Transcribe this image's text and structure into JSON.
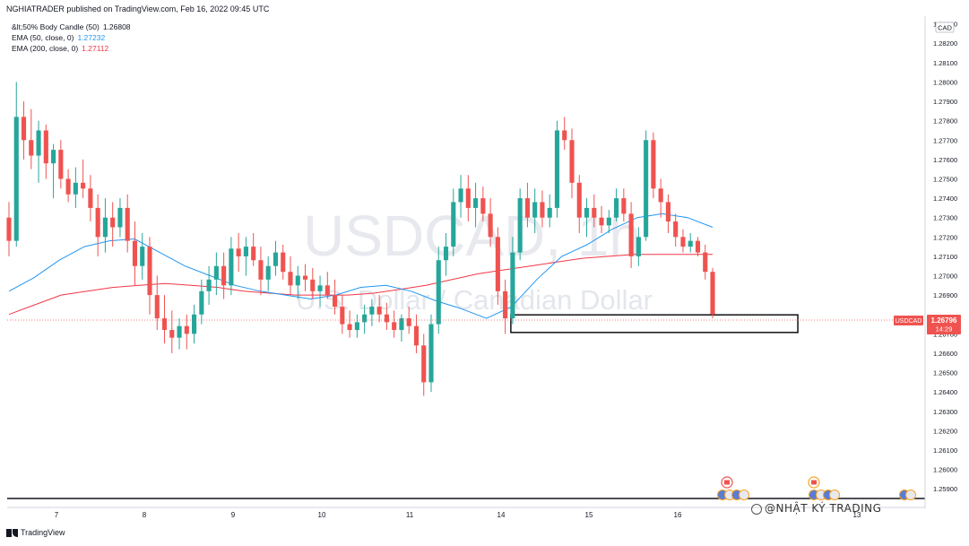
{
  "header": {
    "publisher": "NGHIATRADER published on TradingView.com, Feb 16, 2022 09:45 UTC"
  },
  "legend": {
    "indicator_1": {
      "label": "&lt;50% Body Candle (50)",
      "value": "1.26808",
      "color": "#131722"
    },
    "indicator_2": {
      "label": "EMA (50, close, 0)",
      "value": "1.27232",
      "color": "#2196f3"
    },
    "indicator_3": {
      "label": "EMA (200, close, 0)",
      "value": "1.27112",
      "color": "#f23645"
    }
  },
  "watermark": {
    "symbol": "USDCAD, 1h",
    "description": "U.S. Dollar / Canadian Dollar",
    "overlay": "@NHẬT KÝ TRADING"
  },
  "footer": {
    "brand": "TradingView"
  },
  "chart_data": {
    "type": "candlestick",
    "symbol": "USDCAD",
    "currency": "CAD",
    "price_label": "1.26796",
    "countdown": "14:29",
    "y_ticks": [
      "1.28300",
      "1.28200",
      "1.28100",
      "1.28000",
      "1.27900",
      "1.27800",
      "1.27700",
      "1.27600",
      "1.27500",
      "1.27400",
      "1.27300",
      "1.27200",
      "1.27100",
      "1.27000",
      "1.26900",
      "1.26700",
      "1.26600",
      "1.26500",
      "1.26400",
      "1.26300",
      "1.26200",
      "1.26100",
      "1.26000",
      "1.25900"
    ],
    "ylim": [
      1.2585,
      1.2834
    ],
    "x_ticks": [
      "7",
      "8",
      "9",
      "10",
      "11",
      "14",
      "15",
      "16",
      "13"
    ],
    "colors": {
      "up": "#26a69a",
      "down": "#ef5350",
      "ema50": "#2196f3",
      "ema200": "#f23645",
      "box": "#000000"
    },
    "candles": [
      [
        1.273,
        1.2738,
        1.271,
        1.2718
      ],
      [
        1.2718,
        1.28,
        1.2715,
        1.2782
      ],
      [
        1.2782,
        1.279,
        1.276,
        1.277
      ],
      [
        1.277,
        1.2786,
        1.2755,
        1.2762
      ],
      [
        1.2762,
        1.278,
        1.2748,
        1.2775
      ],
      [
        1.2775,
        1.2778,
        1.275,
        1.2758
      ],
      [
        1.2758,
        1.2768,
        1.274,
        1.2765
      ],
      [
        1.2765,
        1.277,
        1.2745,
        1.275
      ],
      [
        1.275,
        1.2755,
        1.2738,
        1.2742
      ],
      [
        1.2742,
        1.2756,
        1.2735,
        1.2748
      ],
      [
        1.2748,
        1.276,
        1.274,
        1.2745
      ],
      [
        1.2745,
        1.2752,
        1.2728,
        1.2735
      ],
      [
        1.2735,
        1.2742,
        1.271,
        1.272
      ],
      [
        1.272,
        1.274,
        1.2712,
        1.273
      ],
      [
        1.273,
        1.2738,
        1.2715,
        1.2725
      ],
      [
        1.2725,
        1.274,
        1.272,
        1.2735
      ],
      [
        1.2735,
        1.2742,
        1.2712,
        1.2718
      ],
      [
        1.2718,
        1.2728,
        1.2695,
        1.2705
      ],
      [
        1.2705,
        1.2722,
        1.2698,
        1.2715
      ],
      [
        1.2715,
        1.272,
        1.268,
        1.269
      ],
      [
        1.269,
        1.27,
        1.2672,
        1.2678
      ],
      [
        1.2678,
        1.269,
        1.2665,
        1.2672
      ],
      [
        1.2672,
        1.2682,
        1.266,
        1.2668
      ],
      [
        1.2668,
        1.2678,
        1.2662,
        1.2674
      ],
      [
        1.2674,
        1.268,
        1.2662,
        1.267
      ],
      [
        1.267,
        1.2685,
        1.2665,
        1.268
      ],
      [
        1.268,
        1.2698,
        1.2675,
        1.2692
      ],
      [
        1.2692,
        1.2705,
        1.2685,
        1.2698
      ],
      [
        1.2698,
        1.2712,
        1.269,
        1.2705
      ],
      [
        1.2705,
        1.2712,
        1.2688,
        1.2695
      ],
      [
        1.2695,
        1.272,
        1.269,
        1.2714
      ],
      [
        1.2714,
        1.2722,
        1.2702,
        1.271
      ],
      [
        1.271,
        1.272,
        1.27,
        1.2715
      ],
      [
        1.2715,
        1.2722,
        1.2705,
        1.2708
      ],
      [
        1.2708,
        1.2715,
        1.269,
        1.2698
      ],
      [
        1.2698,
        1.271,
        1.2692,
        1.2705
      ],
      [
        1.2705,
        1.2718,
        1.27,
        1.2712
      ],
      [
        1.2712,
        1.2716,
        1.2698,
        1.2702
      ],
      [
        1.2702,
        1.271,
        1.269,
        1.2695
      ],
      [
        1.2695,
        1.2705,
        1.2688,
        1.27
      ],
      [
        1.27,
        1.2706,
        1.2692,
        1.2698
      ],
      [
        1.2698,
        1.2704,
        1.2688,
        1.2692
      ],
      [
        1.2692,
        1.27,
        1.2684,
        1.2695
      ],
      [
        1.2695,
        1.2702,
        1.2688,
        1.269
      ],
      [
        1.269,
        1.2698,
        1.268,
        1.2684
      ],
      [
        1.2684,
        1.269,
        1.267,
        1.2675
      ],
      [
        1.2675,
        1.2682,
        1.2668,
        1.2672
      ],
      [
        1.2672,
        1.268,
        1.2668,
        1.2676
      ],
      [
        1.2676,
        1.2685,
        1.267,
        1.268
      ],
      [
        1.268,
        1.2688,
        1.2674,
        1.2684
      ],
      [
        1.2684,
        1.269,
        1.2676,
        1.268
      ],
      [
        1.268,
        1.2686,
        1.2672,
        1.2676
      ],
      [
        1.2676,
        1.2682,
        1.2668,
        1.2672
      ],
      [
        1.2672,
        1.268,
        1.2666,
        1.2678
      ],
      [
        1.2678,
        1.2684,
        1.267,
        1.2674
      ],
      [
        1.2674,
        1.268,
        1.266,
        1.2664
      ],
      [
        1.2664,
        1.267,
        1.2638,
        1.2645
      ],
      [
        1.2645,
        1.268,
        1.264,
        1.2675
      ],
      [
        1.2675,
        1.2715,
        1.267,
        1.2708
      ],
      [
        1.2708,
        1.2722,
        1.27,
        1.2715
      ],
      [
        1.2715,
        1.2745,
        1.271,
        1.2738
      ],
      [
        1.2738,
        1.2752,
        1.273,
        1.2745
      ],
      [
        1.2745,
        1.2752,
        1.2728,
        1.2735
      ],
      [
        1.2735,
        1.2748,
        1.2725,
        1.274
      ],
      [
        1.274,
        1.2746,
        1.2728,
        1.2732
      ],
      [
        1.2732,
        1.274,
        1.2715,
        1.272
      ],
      [
        1.272,
        1.2725,
        1.2685,
        1.2692
      ],
      [
        1.2692,
        1.2698,
        1.267,
        1.2678
      ],
      [
        1.2678,
        1.272,
        1.2675,
        1.2712
      ],
      [
        1.2712,
        1.2745,
        1.2708,
        1.274
      ],
      [
        1.274,
        1.2748,
        1.2725,
        1.273
      ],
      [
        1.273,
        1.2745,
        1.2722,
        1.2738
      ],
      [
        1.2738,
        1.2744,
        1.2725,
        1.273
      ],
      [
        1.273,
        1.2742,
        1.2725,
        1.2735
      ],
      [
        1.2735,
        1.278,
        1.273,
        1.2775
      ],
      [
        1.2775,
        1.2782,
        1.2765,
        1.277
      ],
      [
        1.277,
        1.2776,
        1.274,
        1.2748
      ],
      [
        1.2748,
        1.2752,
        1.2722,
        1.273
      ],
      [
        1.273,
        1.274,
        1.272,
        1.2735
      ],
      [
        1.2735,
        1.2742,
        1.2725,
        1.273
      ],
      [
        1.273,
        1.2736,
        1.2722,
        1.2726
      ],
      [
        1.2726,
        1.2734,
        1.2722,
        1.273
      ],
      [
        1.273,
        1.2745,
        1.2728,
        1.274
      ],
      [
        1.274,
        1.2745,
        1.2728,
        1.2732
      ],
      [
        1.2732,
        1.2738,
        1.2704,
        1.271
      ],
      [
        1.271,
        1.2725,
        1.2705,
        1.272
      ],
      [
        1.272,
        1.2775,
        1.2718,
        1.277
      ],
      [
        1.277,
        1.2774,
        1.274,
        1.2745
      ],
      [
        1.2745,
        1.275,
        1.273,
        1.2738
      ],
      [
        1.2738,
        1.2742,
        1.2722,
        1.2728
      ],
      [
        1.2728,
        1.2732,
        1.2715,
        1.272
      ],
      [
        1.272,
        1.2724,
        1.2712,
        1.2715
      ],
      [
        1.2715,
        1.2722,
        1.2712,
        1.2718
      ],
      [
        1.2718,
        1.272,
        1.271,
        1.2712
      ],
      [
        1.2712,
        1.2716,
        1.2698,
        1.2702
      ],
      [
        1.2702,
        1.2704,
        1.2678,
        1.268
      ]
    ],
    "ema50": [
      1.2692,
      1.2699,
      1.2708,
      1.2715,
      1.2718,
      1.2719,
      1.2712,
      1.2705,
      1.27,
      1.2695,
      1.2692,
      1.269,
      1.2688,
      1.269,
      1.2694,
      1.2695,
      1.2692,
      1.2687,
      1.2683,
      1.2678,
      1.2684,
      1.2698,
      1.271,
      1.2716,
      1.2724,
      1.273,
      1.2732,
      1.273,
      1.2725
    ],
    "ema200": [
      1.268,
      1.2685,
      1.269,
      1.2692,
      1.2694,
      1.2695,
      1.2696,
      1.2695,
      1.2694,
      1.2692,
      1.2691,
      1.269,
      1.269,
      1.269,
      1.2691,
      1.2693,
      1.2695,
      1.2698,
      1.2701,
      1.2703,
      1.2705,
      1.2707,
      1.2709,
      1.271,
      1.2711,
      1.2711,
      1.2711,
      1.2711
    ],
    "box": {
      "from_candle": 68,
      "to_candle": 99,
      "top": 1.26798,
      "bottom": 1.26707
    }
  }
}
